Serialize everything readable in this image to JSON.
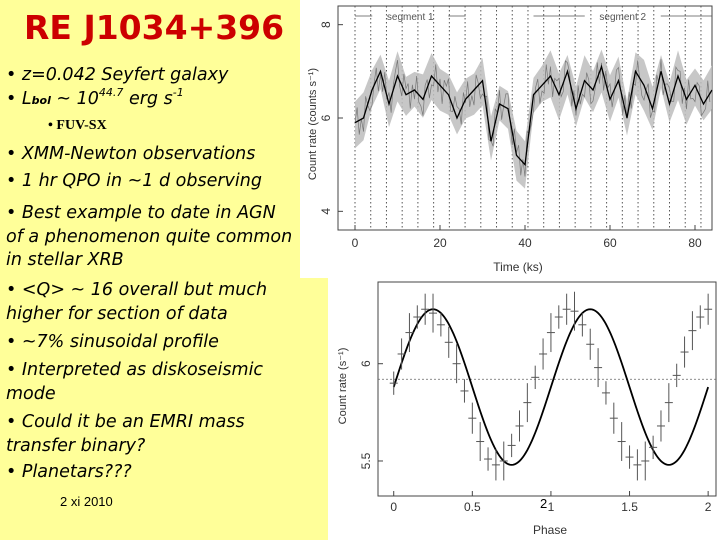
{
  "slide": {
    "title": "RE J1034+396",
    "bullets_top": {
      "b1": "• z=0.042 Seyfert galaxy",
      "b2_prefix": "• L",
      "b2_sub": "bol",
      "b2_mid": " ~ 10",
      "b2_sup": "44.7",
      "b2_unit": " erg s",
      "b2_unit_sup": "-1"
    },
    "fuv": "• FUV-SX",
    "bullets": [
      "• XMM-Newton observations",
      "• 1 hr QPO in ~1 d observing",
      "• Best example to date in AGN of a phenomenon quite common in stellar XRB",
      "• <Q> ~ 16 overall but much higher for section of data",
      "• ~7% sinusoidal profile",
      "• Interpreted as diskoseismic mode",
      "• Could it be an EMRI mass transfer binary?",
      "• Planetars???"
    ],
    "footer_date": "2 xi 2010",
    "page_number": "2"
  },
  "chart_data": [
    {
      "type": "line",
      "xlabel": "Time (ks)",
      "ylabel": "Count rate (counts s⁻¹)",
      "xlim": [
        -4,
        84
      ],
      "ylim": [
        3.6,
        8.4
      ],
      "xticks": [
        "0",
        "20",
        "40",
        "60",
        "80"
      ],
      "yticks": [
        "4",
        "6",
        "8"
      ],
      "annotations": [
        "segment 1",
        "segment 2"
      ],
      "segments": [
        {
          "label": "segment 1",
          "x": [
            0,
            26
          ]
        },
        {
          "label": "segment 2",
          "x": [
            42,
            84
          ]
        }
      ],
      "series": [
        {
          "x": [
            0,
            2,
            4,
            6,
            8,
            10,
            12,
            14,
            16,
            18,
            20,
            22,
            24,
            26,
            28,
            30,
            32,
            34,
            36,
            38,
            40,
            42,
            44,
            46,
            48,
            50,
            52,
            54,
            56,
            58,
            60,
            62,
            64,
            66,
            68,
            70,
            72,
            74,
            76,
            78,
            80,
            82,
            84
          ],
          "y": [
            5.9,
            6.0,
            6.6,
            7.0,
            6.3,
            6.9,
            6.5,
            6.6,
            6.4,
            6.9,
            6.7,
            6.5,
            6.0,
            6.4,
            6.6,
            6.8,
            5.5,
            6.3,
            6.2,
            5.2,
            5.0,
            6.5,
            6.7,
            6.9,
            6.5,
            7.0,
            6.2,
            6.8,
            6.6,
            7.1,
            6.4,
            6.8,
            6.0,
            7.0,
            6.7,
            6.2,
            7.0,
            6.3,
            6.9,
            6.4,
            6.7,
            6.3,
            6.6
          ]
        }
      ]
    },
    {
      "type": "scatter",
      "xlabel": "Phase",
      "ylabel": "Count rate (s⁻¹)",
      "xlim": [
        -0.1,
        2.05
      ],
      "ylim": [
        5.32,
        6.42
      ],
      "xticks": [
        "0",
        "0.5",
        "1",
        "1.5",
        "2"
      ],
      "yticks": [
        "5.5",
        "6"
      ],
      "mean": 5.92,
      "series": [
        {
          "x": [
            0.0,
            0.05,
            0.1,
            0.15,
            0.2,
            0.25,
            0.3,
            0.35,
            0.4,
            0.45,
            0.5,
            0.55,
            0.6,
            0.65,
            0.7,
            0.75,
            0.8,
            0.85,
            0.9,
            0.95,
            1.0,
            1.05,
            1.1,
            1.15,
            1.2,
            1.25,
            1.3,
            1.35,
            1.4,
            1.45,
            1.5,
            1.55,
            1.6,
            1.65,
            1.7,
            1.75,
            1.8,
            1.85,
            1.9,
            1.95,
            2.0
          ],
          "y": [
            5.9,
            6.05,
            6.16,
            6.24,
            6.28,
            6.26,
            6.2,
            6.11,
            6.0,
            5.86,
            5.72,
            5.6,
            5.51,
            5.48,
            5.5,
            5.58,
            5.68,
            5.8,
            5.93,
            6.05,
            6.16,
            6.24,
            6.28,
            6.27,
            6.2,
            6.1,
            5.98,
            5.85,
            5.72,
            5.6,
            5.52,
            5.48,
            5.5,
            5.57,
            5.68,
            5.8,
            5.94,
            6.06,
            6.17,
            6.24,
            6.28
          ]
        }
      ]
    }
  ]
}
